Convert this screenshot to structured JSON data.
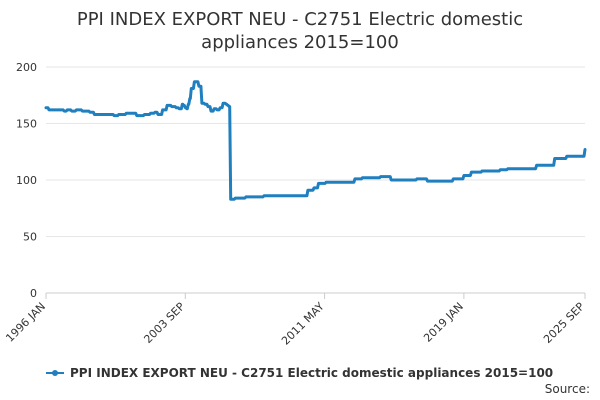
{
  "title_lines": [
    "PPI INDEX EXPORT NEU - C2751 Electric domestic",
    "appliances 2015=100"
  ],
  "source_label": "Source:",
  "colors": {
    "series": "#1f7fbf",
    "grid": "#e6e6e6",
    "axis": "#cccccc",
    "text": "#333333",
    "background": "#ffffff"
  },
  "chart_data": {
    "type": "line",
    "title": "PPI INDEX EXPORT NEU - C2751 Electric domestic appliances 2015=100",
    "xlabel": "",
    "ylabel": "",
    "xlim": [
      "1996-01",
      "2025-09"
    ],
    "ylim": [
      0,
      200
    ],
    "yticks": [
      0,
      50,
      100,
      150,
      200
    ],
    "xticks": [
      "1996 JAN",
      "2003 SEP",
      "2011 MAY",
      "2019 JAN",
      "2025 SEP"
    ],
    "grid": "horizontal",
    "legend_position": "bottom-left",
    "series": [
      {
        "name": "PPI INDEX EXPORT NEU - C2751 Electric domestic appliances 2015=100",
        "x": [
          "1996-01",
          "1996-03",
          "1996-08",
          "1997-01",
          "1997-03",
          "1997-06",
          "1997-09",
          "1998-01",
          "1998-06",
          "1998-09",
          "1999-01",
          "1999-06",
          "1999-10",
          "2000-01",
          "2000-03",
          "2000-06",
          "2000-09",
          "2001-01",
          "2001-06",
          "2001-10",
          "2002-01",
          "2002-03",
          "2002-06",
          "2002-09",
          "2002-12",
          "2003-03",
          "2003-05",
          "2003-07",
          "2003-08",
          "2003-09",
          "2003-10",
          "2003-11",
          "2003-12",
          "2004-01",
          "2004-03",
          "2004-06",
          "2004-08",
          "2004-10",
          "2004-12",
          "2005-02",
          "2005-04",
          "2005-06",
          "2005-08",
          "2005-10",
          "2005-12",
          "2006-01",
          "2006-02",
          "2006-03",
          "2006-06",
          "2007-01",
          "2008-01",
          "2009-01",
          "2010-01",
          "2010-06",
          "2010-10",
          "2011-01",
          "2011-06",
          "2012-01",
          "2012-06",
          "2013-01",
          "2013-06",
          "2014-01",
          "2014-06",
          "2015-01",
          "2015-06",
          "2016-01",
          "2016-06",
          "2017-01",
          "2017-06",
          "2018-01",
          "2018-06",
          "2019-01",
          "2019-06",
          "2020-01",
          "2020-06",
          "2021-01",
          "2021-06",
          "2022-01",
          "2022-06",
          "2023-01",
          "2024-01",
          "2024-09",
          "2025-03",
          "2025-09"
        ],
        "values": [
          164,
          162,
          162,
          161,
          162,
          161,
          162,
          161,
          160,
          158,
          158,
          158,
          157,
          158,
          158,
          159,
          159,
          157,
          158,
          159,
          160,
          158,
          162,
          166,
          165,
          164,
          163,
          167,
          166,
          164,
          163,
          167,
          172,
          181,
          187,
          183,
          168,
          167,
          165,
          161,
          163,
          162,
          164,
          168,
          167,
          166,
          165,
          83,
          84,
          85,
          86,
          86,
          86,
          91,
          93,
          97,
          98,
          98,
          98,
          101,
          102,
          102,
          103,
          100,
          100,
          100,
          101,
          99,
          99,
          99,
          101,
          104,
          107,
          108,
          108,
          109,
          110,
          110,
          110,
          113,
          119,
          121,
          121,
          127
        ]
      }
    ]
  }
}
